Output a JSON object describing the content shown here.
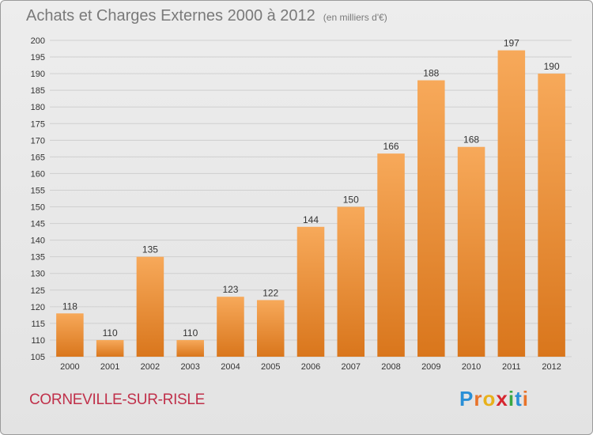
{
  "header": {
    "title": "Achats et Charges Externes 2000 à 2012",
    "subtitle": "(en milliers d'€)"
  },
  "footer": {
    "commune": "CORNEVILLE-SUR-RISLE",
    "logo_letters": [
      "P",
      "r",
      "o",
      "x",
      "i",
      "t",
      "i"
    ],
    "logo_colors": [
      "#2a8fd6",
      "#e8732a",
      "#e8b11a",
      "#d6262f",
      "#3aa843",
      "#2a8fd6",
      "#e8732a"
    ]
  },
  "colors": {
    "bar_light": "#f7a95a",
    "bar_dark": "#d9761c",
    "grid": "#cfcfcf",
    "axis_text": "#333333"
  },
  "chart_data": {
    "type": "bar",
    "categories": [
      "2000",
      "2001",
      "2002",
      "2003",
      "2004",
      "2005",
      "2006",
      "2007",
      "2008",
      "2009",
      "2010",
      "2011",
      "2012"
    ],
    "values": [
      118,
      110,
      135,
      110,
      123,
      122,
      144,
      150,
      166,
      188,
      168,
      197,
      190
    ],
    "title": "Achats et Charges Externes 2000 à 2012",
    "subtitle": "(en milliers d'€)",
    "ylim": [
      105,
      200
    ],
    "yticks": [
      105,
      110,
      115,
      120,
      125,
      130,
      135,
      140,
      145,
      150,
      155,
      160,
      165,
      170,
      175,
      180,
      185,
      190,
      195,
      200
    ],
    "grid": true,
    "data_labels": true
  }
}
